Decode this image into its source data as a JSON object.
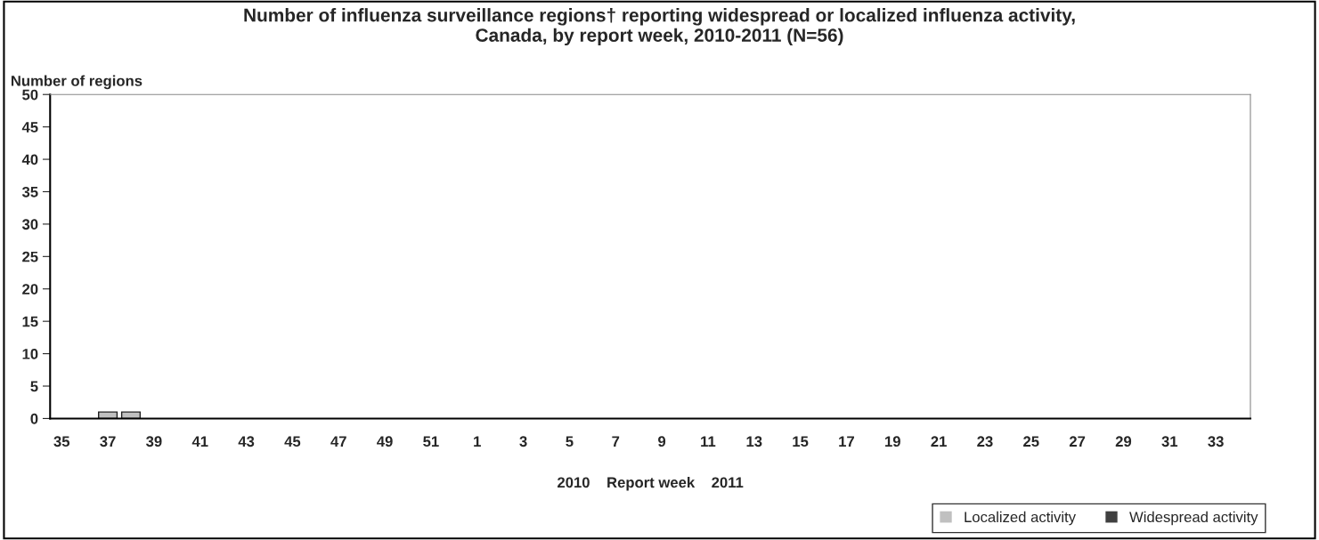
{
  "chart_data": {
    "type": "bar",
    "title": "Number of influenza surveillance regions† reporting widespread or localized influenza activity,\nCanada, by report week, 2010-2011 (N=56)",
    "ylabel": "Number of regions",
    "xlabel": "2010    Report week    2011",
    "categories": [
      "35",
      null,
      "37",
      null,
      "39",
      null,
      "41",
      null,
      "43",
      null,
      "45",
      null,
      "47",
      null,
      "49",
      null,
      "51",
      null,
      "1",
      null,
      "3",
      null,
      "5",
      null,
      "7",
      null,
      "9",
      null,
      "11",
      null,
      "13",
      null,
      "15",
      null,
      "17",
      null,
      "19",
      null,
      "21",
      null,
      "23",
      null,
      "25",
      null,
      "27",
      null,
      "29",
      null,
      "31",
      null,
      "33",
      null
    ],
    "stacked": true,
    "series": [
      {
        "name": "Localized activity",
        "color": "#c0c0c0",
        "values": [
          0,
          0,
          1,
          1,
          0,
          0,
          0,
          0,
          0,
          0,
          0,
          0,
          0,
          0,
          0,
          0,
          0,
          0,
          0,
          0,
          0,
          0,
          0,
          0,
          0,
          0,
          0,
          0,
          0,
          0,
          0,
          0,
          0,
          0,
          0,
          0,
          0,
          0,
          0,
          0,
          0,
          0,
          0,
          0,
          0,
          0,
          0,
          0,
          0,
          0,
          0,
          0
        ]
      },
      {
        "name": "Widespread activity",
        "color": "#404040",
        "values": [
          0,
          0,
          0,
          0,
          0,
          0,
          0,
          0,
          0,
          0,
          0,
          0,
          0,
          0,
          0,
          0,
          0,
          0,
          0,
          0,
          0,
          0,
          0,
          0,
          0,
          0,
          0,
          0,
          0,
          0,
          0,
          0,
          0,
          0,
          0,
          0,
          0,
          0,
          0,
          0,
          0,
          0,
          0,
          0,
          0,
          0,
          0,
          0,
          0,
          0,
          0,
          0
        ]
      }
    ],
    "ylim": [
      0,
      50
    ],
    "yticks": [
      0,
      5,
      10,
      15,
      20,
      25,
      30,
      35,
      40,
      45,
      50
    ],
    "grid": false,
    "legend": "bottom right"
  }
}
